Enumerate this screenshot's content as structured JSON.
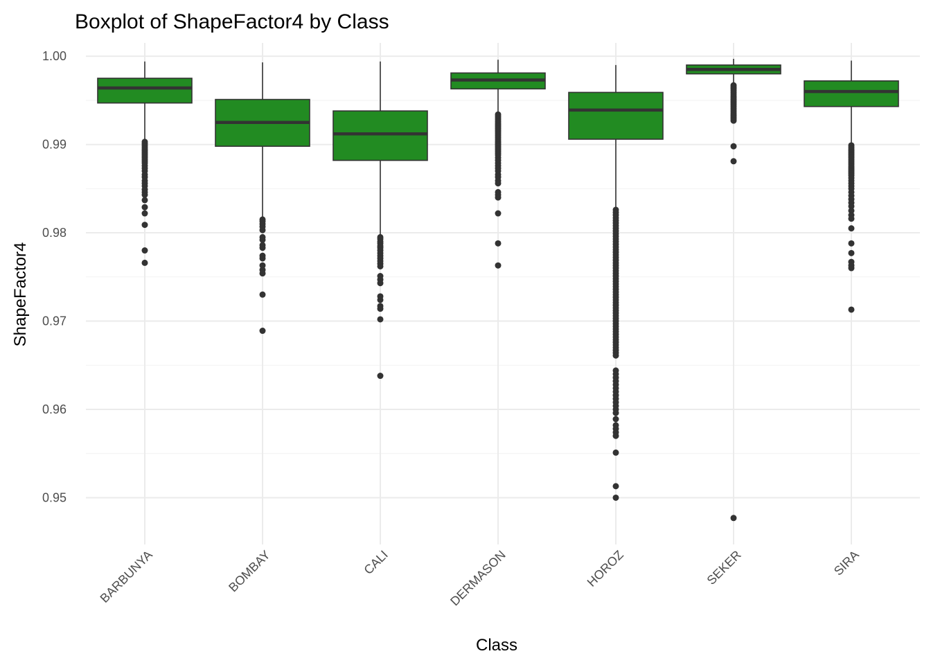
{
  "chart_data": {
    "type": "boxplot",
    "title": "Boxplot of ShapeFactor4 by Class",
    "xlabel": "Class",
    "ylabel": "ShapeFactor4",
    "ylim": [
      0.9447,
      1.0015
    ],
    "yticks": [
      "0.95",
      "0.96",
      "0.97",
      "0.98",
      "0.99",
      "1.00"
    ],
    "ytick_values": [
      0.95,
      0.96,
      0.97,
      0.98,
      0.99,
      1.0
    ],
    "grid": true,
    "legend": "none",
    "box_color": "#228B22",
    "line_color": "#333333",
    "categories": [
      "BARBUNYA",
      "BOMBAY",
      "CALI",
      "DERMASON",
      "HOROZ",
      "SEKER",
      "SIRA"
    ],
    "boxes": [
      {
        "label": "BARBUNYA",
        "whisker_low": 0.9906,
        "q1": 0.9947,
        "median": 0.9964,
        "q3": 0.9975,
        "whisker_high": 0.9994,
        "outliers": [
          0.9903,
          0.9901,
          0.9899,
          0.9897,
          0.9895,
          0.9893,
          0.9891,
          0.9889,
          0.9887,
          0.9885,
          0.9883,
          0.9881,
          0.9879,
          0.9876,
          0.9873,
          0.987,
          0.9866,
          0.9863,
          0.9859,
          0.9856,
          0.9853,
          0.9849,
          0.9846,
          0.9843,
          0.9837,
          0.9829,
          0.9822,
          0.9809,
          0.978,
          0.9766
        ]
      },
      {
        "label": "BOMBAY",
        "whisker_low": 0.9818,
        "q1": 0.9898,
        "median": 0.9925,
        "q3": 0.9951,
        "whisker_high": 0.9993,
        "outliers": [
          0.9815,
          0.9813,
          0.981,
          0.9807,
          0.9803,
          0.9795,
          0.9792,
          0.9786,
          0.9783,
          0.9774,
          0.9771,
          0.9763,
          0.9758,
          0.9754,
          0.973,
          0.9689
        ]
      },
      {
        "label": "CALI",
        "whisker_low": 0.9798,
        "q1": 0.9882,
        "median": 0.9912,
        "q3": 0.9938,
        "whisker_high": 0.9994,
        "outliers": [
          0.9795,
          0.9793,
          0.979,
          0.9788,
          0.9785,
          0.9783,
          0.978,
          0.9777,
          0.9774,
          0.9771,
          0.9768,
          0.9765,
          0.9762,
          0.9751,
          0.9747,
          0.9743,
          0.9728,
          0.9724,
          0.9717,
          0.9714,
          0.9702,
          0.9638
        ]
      },
      {
        "label": "DERMASON",
        "whisker_low": 0.9937,
        "q1": 0.9963,
        "median": 0.9973,
        "q3": 0.9981,
        "whisker_high": 0.9996,
        "outliers": [
          0.9934,
          0.9932,
          0.993,
          0.9928,
          0.9926,
          0.9924,
          0.9922,
          0.992,
          0.9918,
          0.9916,
          0.9914,
          0.9912,
          0.991,
          0.9908,
          0.9906,
          0.9904,
          0.9902,
          0.99,
          0.9898,
          0.9896,
          0.9894,
          0.9892,
          0.989,
          0.9888,
          0.9885,
          0.9882,
          0.9879,
          0.9876,
          0.9873,
          0.987,
          0.9866,
          0.9863,
          0.9859,
          0.9856,
          0.9846,
          0.9843,
          0.984,
          0.9822,
          0.9788,
          0.9763
        ]
      },
      {
        "label": "HOROZ",
        "whisker_low": 0.9828,
        "q1": 0.9906,
        "median": 0.9939,
        "q3": 0.9959,
        "whisker_high": 0.999,
        "outliers": [
          0.9826,
          0.9823,
          0.982,
          0.9817,
          0.9814,
          0.9811,
          0.9808,
          0.9805,
          0.9802,
          0.9799,
          0.9796,
          0.9793,
          0.979,
          0.9787,
          0.9784,
          0.9781,
          0.9778,
          0.9775,
          0.9772,
          0.9769,
          0.9766,
          0.9763,
          0.976,
          0.9757,
          0.9754,
          0.9751,
          0.9748,
          0.9745,
          0.9742,
          0.9739,
          0.9736,
          0.9733,
          0.973,
          0.9727,
          0.9724,
          0.9721,
          0.9718,
          0.9715,
          0.9712,
          0.9709,
          0.9706,
          0.9703,
          0.97,
          0.9697,
          0.9694,
          0.9691,
          0.9688,
          0.9685,
          0.9682,
          0.9679,
          0.9676,
          0.9673,
          0.967,
          0.9667,
          0.9664,
          0.9661,
          0.9644,
          0.964,
          0.9636,
          0.9632,
          0.9628,
          0.9624,
          0.962,
          0.9616,
          0.9612,
          0.9608,
          0.9604,
          0.96,
          0.9596,
          0.9589,
          0.9582,
          0.9578,
          0.9574,
          0.957,
          0.9551,
          0.9513,
          0.95
        ]
      },
      {
        "label": "SEKER",
        "whisker_low": 0.9969,
        "q1": 0.998,
        "median": 0.9985,
        "q3": 0.999,
        "whisker_high": 0.9997,
        "outliers": [
          0.9967,
          0.9965,
          0.9963,
          0.9961,
          0.9959,
          0.9957,
          0.9955,
          0.9953,
          0.9951,
          0.9949,
          0.9947,
          0.9945,
          0.9943,
          0.9941,
          0.9939,
          0.9937,
          0.9935,
          0.9933,
          0.9931,
          0.9929,
          0.9927,
          0.9898,
          0.9881,
          0.9477
        ]
      },
      {
        "label": "SIRA",
        "whisker_low": 0.9902,
        "q1": 0.9943,
        "median": 0.996,
        "q3": 0.9972,
        "whisker_high": 0.9995,
        "outliers": [
          0.9899,
          0.9897,
          0.9895,
          0.9893,
          0.9891,
          0.9889,
          0.9887,
          0.9885,
          0.9883,
          0.9881,
          0.9879,
          0.9877,
          0.9875,
          0.9873,
          0.9871,
          0.9869,
          0.9867,
          0.9865,
          0.9862,
          0.9859,
          0.9856,
          0.9853,
          0.985,
          0.9846,
          0.9842,
          0.9838,
          0.9834,
          0.983,
          0.9825,
          0.982,
          0.9816,
          0.9805,
          0.9788,
          0.9777,
          0.9767,
          0.9763,
          0.976,
          0.9713
        ]
      }
    ]
  }
}
